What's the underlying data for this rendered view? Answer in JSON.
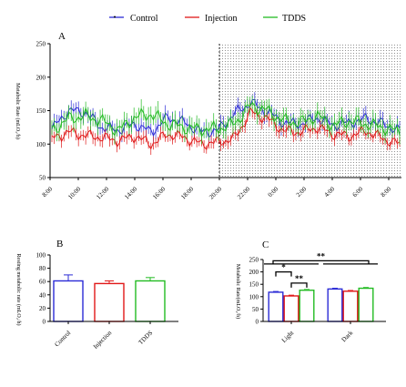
{
  "legend": [
    {
      "name": "Control",
      "color": "#2b2bd6"
    },
    {
      "name": "Injection",
      "color": "#e01818"
    },
    {
      "name": "TDDS",
      "color": "#22bb22"
    }
  ],
  "chart_data": [
    {
      "panel": "A",
      "type": "line",
      "ylabel": "Metabolic Rate (mLO₂/h)",
      "ylim": [
        50,
        250
      ],
      "yticks": [
        "50",
        "100",
        "150",
        "200",
        "250"
      ],
      "xticks": [
        "8:00",
        "10:00",
        "12:00",
        "14:00",
        "16:00",
        "18:00",
        "20:00",
        "22:00",
        "0:00",
        "2:00",
        "4:00",
        "6:00",
        "8:00"
      ],
      "dark_phase": {
        "from": "20:00",
        "to": "8:00",
        "pattern": "dotted"
      },
      "error_bars": true,
      "grid": false,
      "points_per_series": 145,
      "series": [
        {
          "name": "Control",
          "color": "#2b2bd6",
          "amplitude": 10,
          "error": 12,
          "values": [
            122,
            150,
            148,
            125,
            121,
            130,
            118,
            140,
            132,
            118,
            120,
            145,
            162,
            148,
            132,
            130,
            140,
            128,
            132,
            138,
            130,
            120
          ]
        },
        {
          "name": "Injection",
          "color": "#e01818",
          "amplitude": 10,
          "error": 10,
          "values": [
            108,
            118,
            113,
            110,
            105,
            112,
            100,
            115,
            110,
            100,
            103,
            108,
            148,
            138,
            120,
            118,
            125,
            115,
            112,
            120,
            108,
            100
          ]
        },
        {
          "name": "TDDS",
          "color": "#22bb22",
          "amplitude": 12,
          "error": 14,
          "values": [
            120,
            138,
            142,
            135,
            120,
            140,
            145,
            130,
            125,
            122,
            123,
            130,
            158,
            150,
            135,
            132,
            142,
            128,
            135,
            130,
            125,
            118
          ]
        }
      ]
    },
    {
      "panel": "B",
      "type": "bar",
      "ylabel": "Resting metabolic rate (mLO₂/h)",
      "ylim": [
        0,
        100
      ],
      "yticks": [
        "0",
        "20",
        "40",
        "60",
        "80",
        "100"
      ],
      "categories": [
        "Control",
        "Injection",
        "TDDS"
      ],
      "colors": [
        "#2b2bd6",
        "#e01818",
        "#22bb22"
      ],
      "values": [
        61,
        57,
        61
      ],
      "errors": [
        9,
        4,
        5
      ]
    },
    {
      "panel": "C",
      "type": "bar",
      "ylabel": "Metabolic Rate(mLO₂/h)",
      "ylim": [
        0,
        250
      ],
      "yticks": [
        "0",
        "50",
        "100",
        "150",
        "200",
        "250"
      ],
      "categories": [
        "Light",
        "Dark"
      ],
      "series": [
        {
          "name": "Control",
          "color": "#2b2bd6",
          "values": [
            118,
            131
          ],
          "errors": [
            3,
            3
          ]
        },
        {
          "name": "Injection",
          "color": "#e01818",
          "values": [
            103,
            122
          ],
          "errors": [
            3,
            3
          ]
        },
        {
          "name": "TDDS",
          "color": "#22bb22",
          "values": [
            126,
            134
          ],
          "errors": [
            3,
            3
          ]
        }
      ],
      "significance": [
        {
          "label": "**",
          "scope": "Light vs Dark"
        },
        {
          "label": "*",
          "scope": "Light: Control vs Injection"
        },
        {
          "label": "**",
          "scope": "Light: Injection vs TDDS"
        }
      ]
    }
  ]
}
